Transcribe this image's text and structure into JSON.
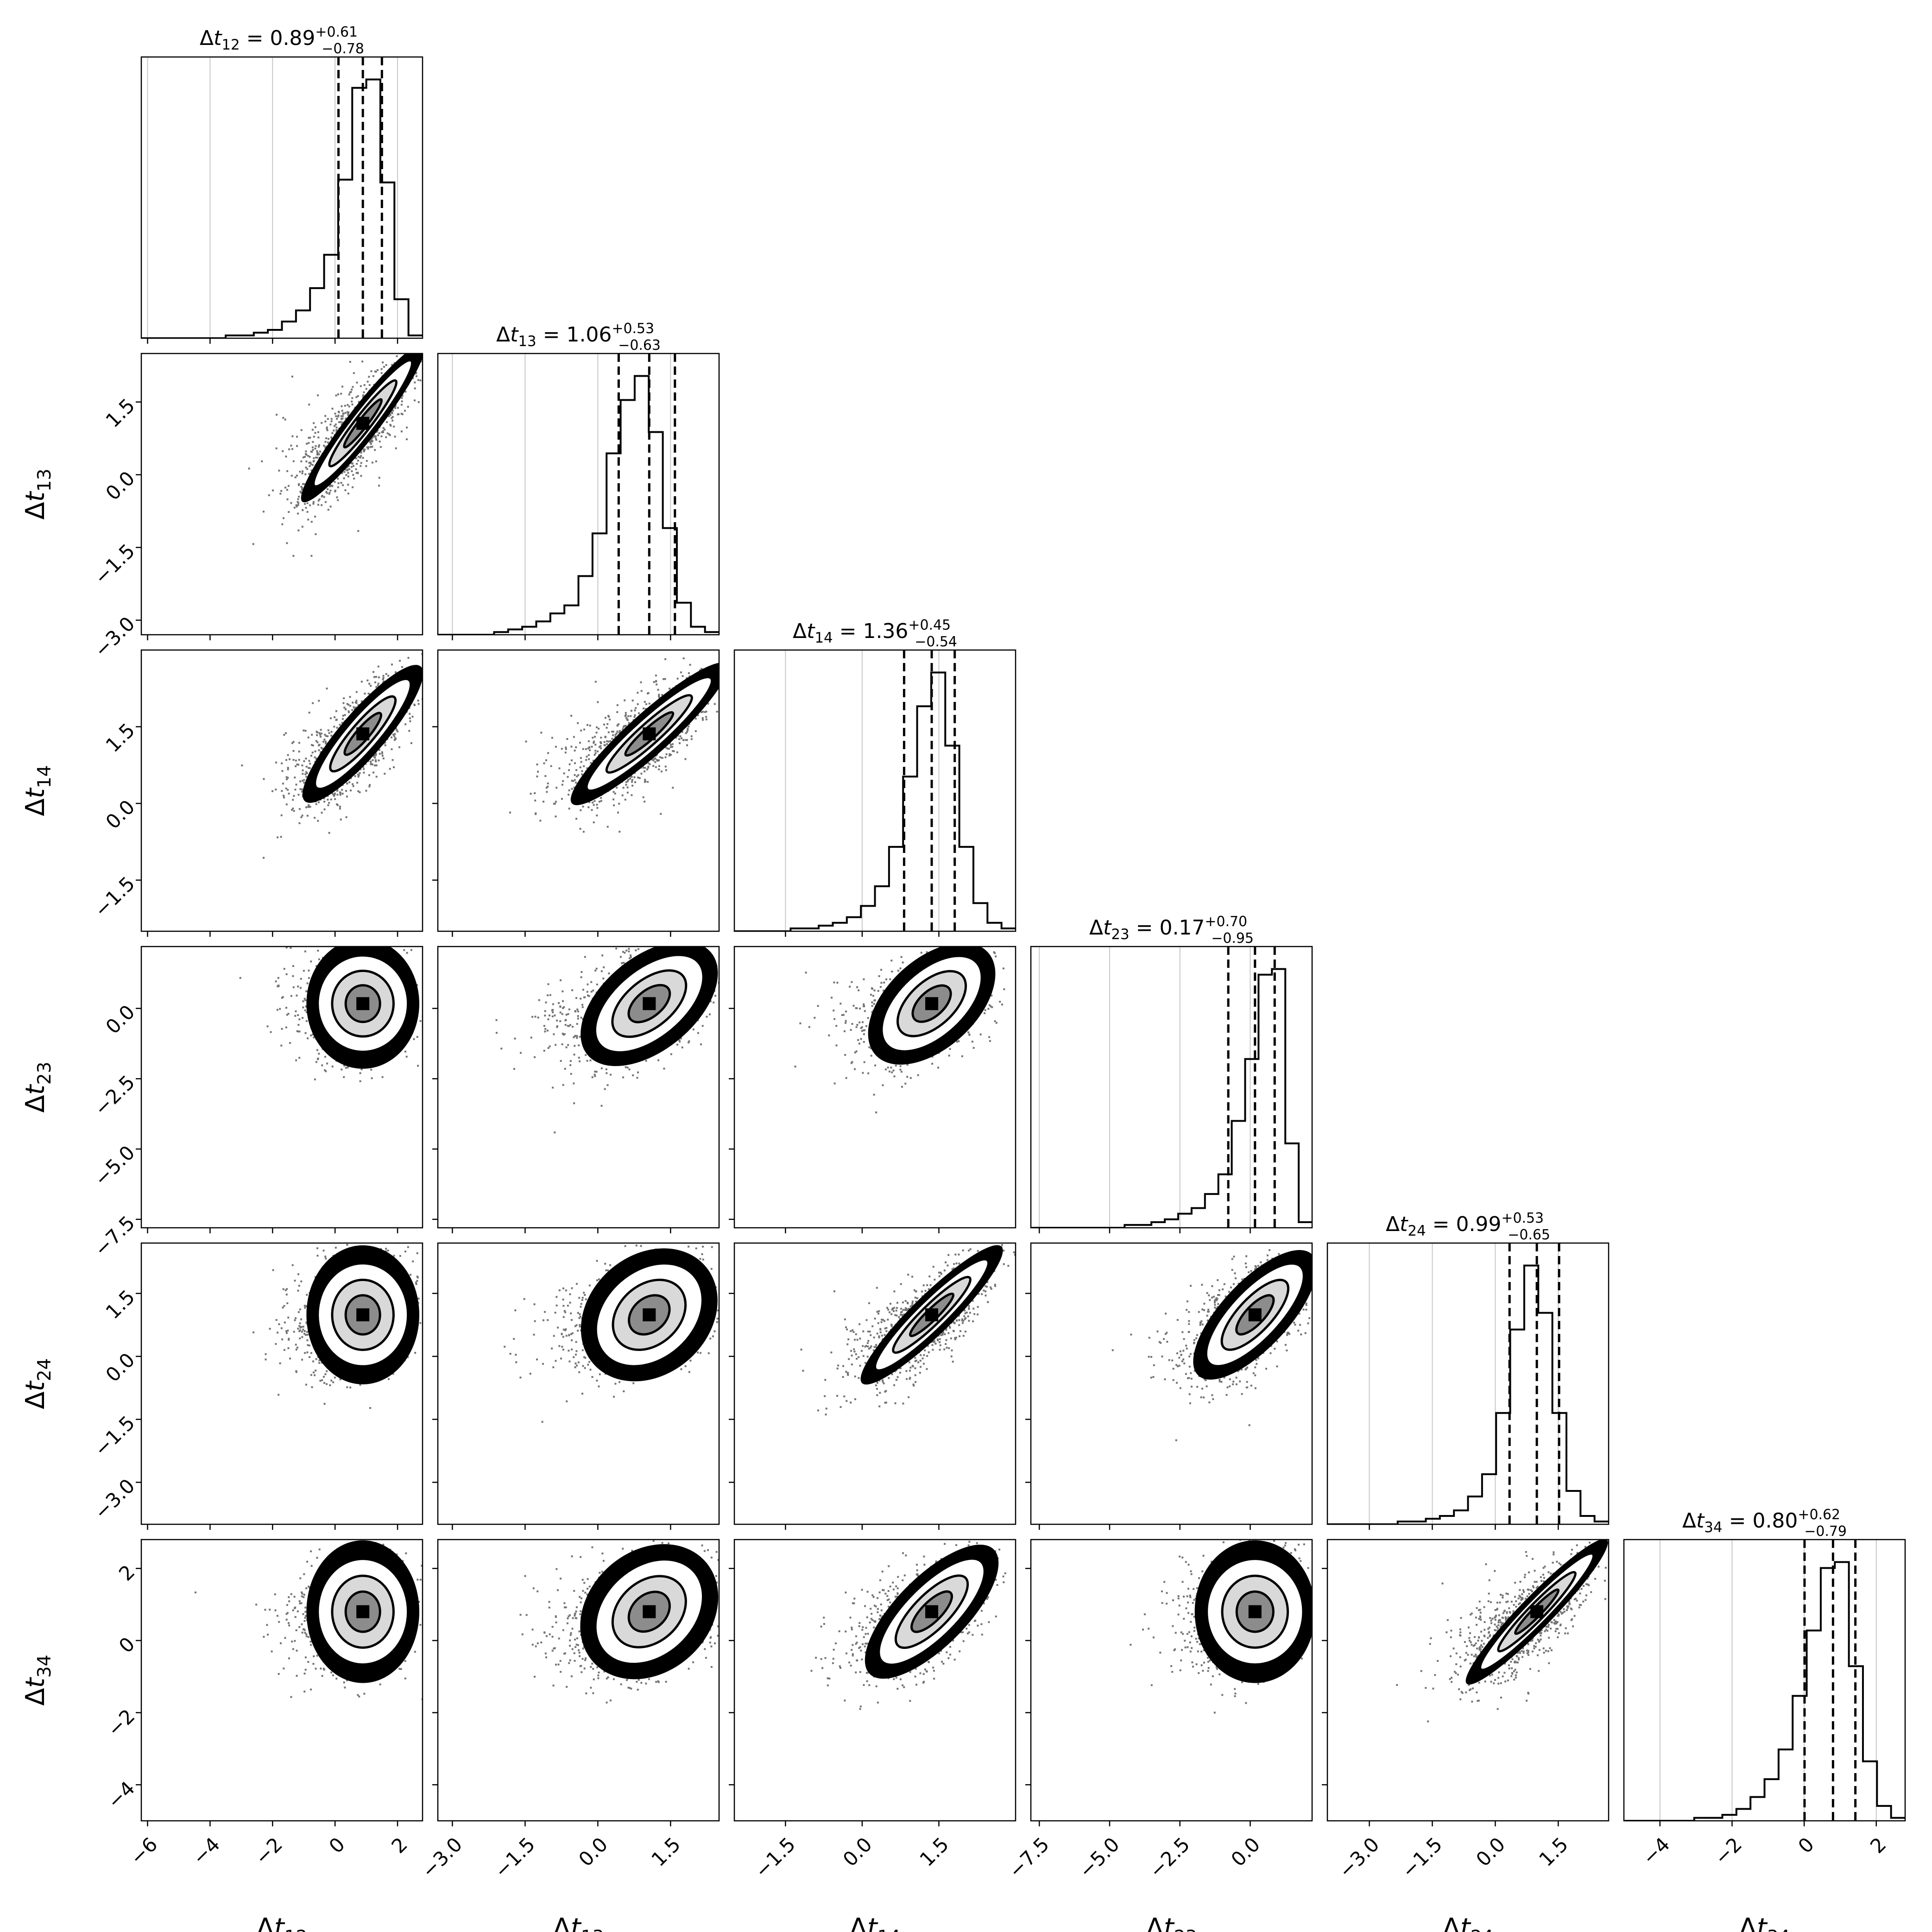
{
  "chart_data": {
    "type": "corner",
    "variables": [
      {
        "key": "t12",
        "sub": "12",
        "range": [
          -6.2,
          2.8
        ],
        "ticks": [
          -6,
          -4,
          -2,
          0,
          2
        ],
        "tick_labels": [
          "−6",
          "−4",
          "−2",
          "0",
          "2"
        ],
        "median": 0.89,
        "plus": 0.61,
        "minus": 0.78,
        "value": "0.89",
        "plus_label": "+0.61",
        "minus_label": "−0.78",
        "hist": [
          0,
          0,
          0,
          0,
          0,
          0,
          0.01,
          0.01,
          0.02,
          0.03,
          0.06,
          0.1,
          0.18,
          0.3,
          0.57,
          0.9,
          0.93,
          0.56,
          0.14,
          0.01
        ]
      },
      {
        "key": "t13",
        "sub": "13",
        "range": [
          -3.3,
          2.5
        ],
        "ticks": [
          -3.0,
          -1.5,
          0.0,
          1.5
        ],
        "tick_labels": [
          "−3.0",
          "−1.5",
          "0.0",
          "1.5"
        ],
        "median": 1.06,
        "plus": 0.53,
        "minus": 0.63,
        "value": "1.06",
        "plus_label": "+0.53",
        "minus_label": "−0.63",
        "hist": [
          0,
          0,
          0,
          0,
          0.01,
          0.02,
          0.03,
          0.05,
          0.08,
          0.11,
          0.22,
          0.38,
          0.68,
          0.88,
          0.97,
          0.76,
          0.4,
          0.12,
          0.03,
          0.01
        ]
      },
      {
        "key": "t14",
        "sub": "14",
        "range": [
          -2.5,
          3.0
        ],
        "ticks": [
          -1.5,
          0.0,
          1.5
        ],
        "tick_labels": [
          "−1.5",
          "0.0",
          "1.5"
        ],
        "median": 1.36,
        "plus": 0.45,
        "minus": 0.54,
        "value": "1.36",
        "plus_label": "+0.45",
        "minus_label": "−0.54",
        "hist": [
          0,
          0,
          0,
          0,
          0.01,
          0.01,
          0.02,
          0.03,
          0.05,
          0.09,
          0.16,
          0.3,
          0.55,
          0.8,
          0.92,
          0.66,
          0.3,
          0.1,
          0.03,
          0.01
        ]
      },
      {
        "key": "t23",
        "sub": "23",
        "range": [
          -7.8,
          2.2
        ],
        "ticks": [
          -7.5,
          -5.0,
          -2.5,
          0.0
        ],
        "tick_labels": [
          "−7.5",
          "−5.0",
          "−2.5",
          "0.0"
        ],
        "median": 0.17,
        "plus": 0.7,
        "minus": 0.95,
        "value": "0.17",
        "plus_label": "+0.70",
        "minus_label": "−0.95",
        "hist": [
          0,
          0,
          0,
          0,
          0,
          0,
          0,
          0.01,
          0.01,
          0.02,
          0.03,
          0.05,
          0.07,
          0.12,
          0.19,
          0.38,
          0.6,
          0.9,
          0.92,
          0.3,
          0.02
        ]
      },
      {
        "key": "t24",
        "sub": "24",
        "range": [
          -4.0,
          2.7
        ],
        "ticks": [
          -3.0,
          -1.5,
          0.0,
          1.5
        ],
        "tick_labels": [
          "−3.0",
          "−1.5",
          "0.0",
          "1.5"
        ],
        "median": 0.99,
        "plus": 0.53,
        "minus": 0.65,
        "value": "0.99",
        "plus_label": "+0.53",
        "minus_label": "−0.65",
        "hist": [
          0,
          0,
          0,
          0,
          0,
          0.01,
          0.01,
          0.02,
          0.03,
          0.05,
          0.1,
          0.18,
          0.4,
          0.7,
          0.93,
          0.76,
          0.4,
          0.12,
          0.03,
          0.01
        ]
      },
      {
        "key": "t34",
        "sub": "34",
        "range": [
          -5.0,
          2.8
        ],
        "ticks": [
          -4,
          -2,
          0,
          2
        ],
        "tick_labels": [
          "−4",
          "−2",
          "0",
          "2"
        ],
        "median": 0.8,
        "plus": 0.62,
        "minus": 0.79,
        "value": "0.80",
        "plus_label": "+0.62",
        "minus_label": "−0.79",
        "hist": [
          0,
          0,
          0,
          0,
          0,
          0.01,
          0.01,
          0.02,
          0.04,
          0.08,
          0.14,
          0.24,
          0.42,
          0.64,
          0.85,
          0.87,
          0.52,
          0.2,
          0.05,
          0.01
        ]
      }
    ],
    "label_symbol": "Δt",
    "title_template": "Δt_{ij} = value^{+plus}_{−minus}",
    "grid_lines": "light gray vertical grid lines in diagonal panels",
    "quantile_lines": "dashed black at 16th, 50th, 84th percentiles",
    "scatter_color": "#000000",
    "contour_color": "#000000",
    "plot_type": "corner plot: 1D histograms on diagonal, 2D scatter with density contours below"
  }
}
